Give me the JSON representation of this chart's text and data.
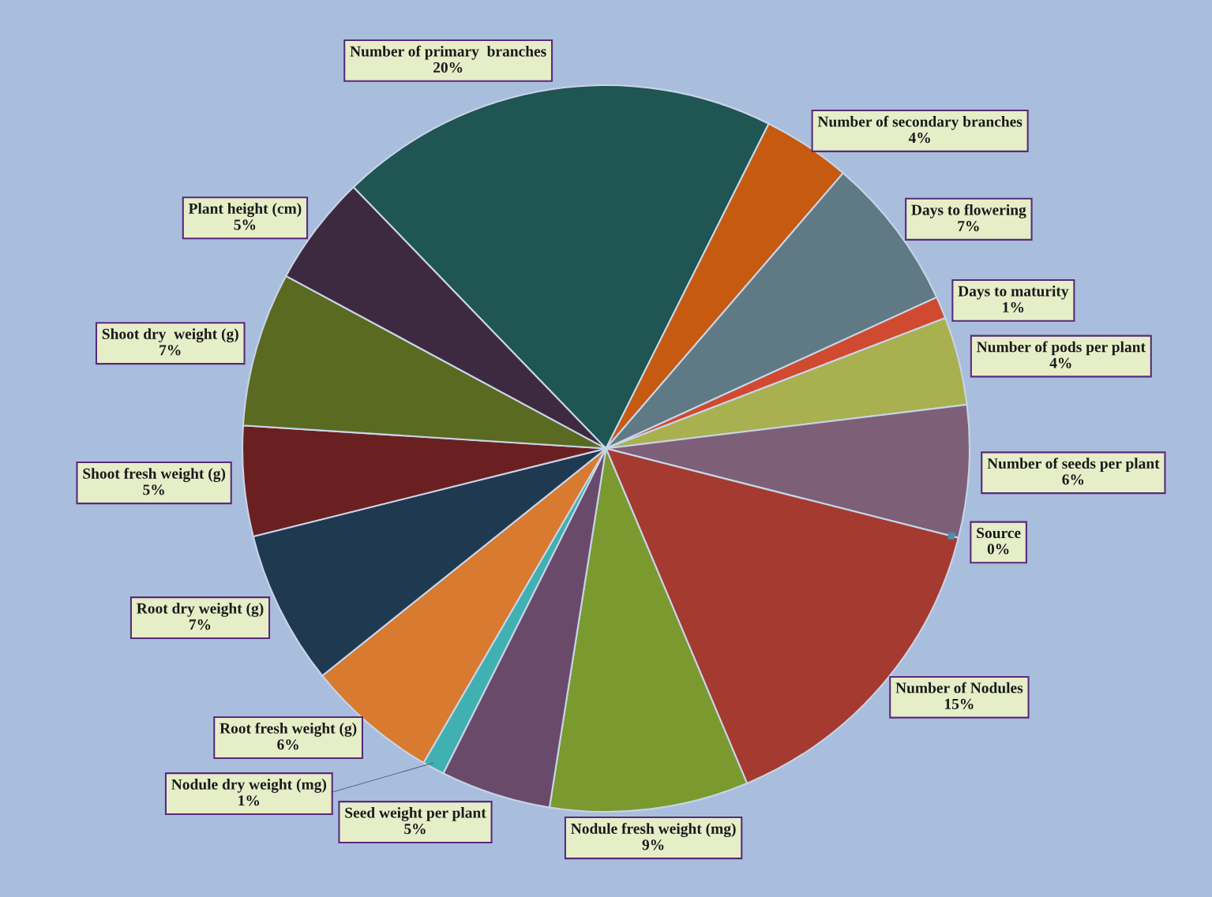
{
  "chart_data": {
    "type": "pie",
    "categories": [
      "Number of primary  branches",
      "Number of secondary branches",
      "Days to flowering",
      "Days to maturity",
      "Number of pods per plant",
      "Number of seeds per plant",
      "Source",
      "Number of Nodules",
      "Nodule fresh weight (mg)",
      "Seed weight per plant",
      "Nodule dry weight (mg)",
      "Root fresh weight (g)",
      "Root dry weight (g)",
      "Shoot fresh weight (g)",
      "Shoot dry  weight (g)",
      "Plant height (cm)"
    ],
    "values": [
      20,
      4,
      7,
      1,
      4,
      6,
      0,
      15,
      9,
      5,
      1,
      6,
      7,
      5,
      7,
      5
    ],
    "value_labels": [
      "20%",
      "4%",
      "7%",
      "1%",
      "4%",
      "6%",
      "0%",
      "15%",
      "9%",
      "5%",
      "1%",
      "6%",
      "7%",
      "5%",
      "7%",
      "5%"
    ],
    "colors": [
      "#1f5552",
      "#c65a10",
      "#5f7a85",
      "#d04a30",
      "#a8b050",
      "#7d6078",
      "#4a8fb0",
      "#a53a30",
      "#7a9a30",
      "#6a4a6a",
      "#40b0b0",
      "#d87a30",
      "#1f3a50",
      "#6a2020",
      "#5a6a20",
      "#3e2a40"
    ]
  }
}
